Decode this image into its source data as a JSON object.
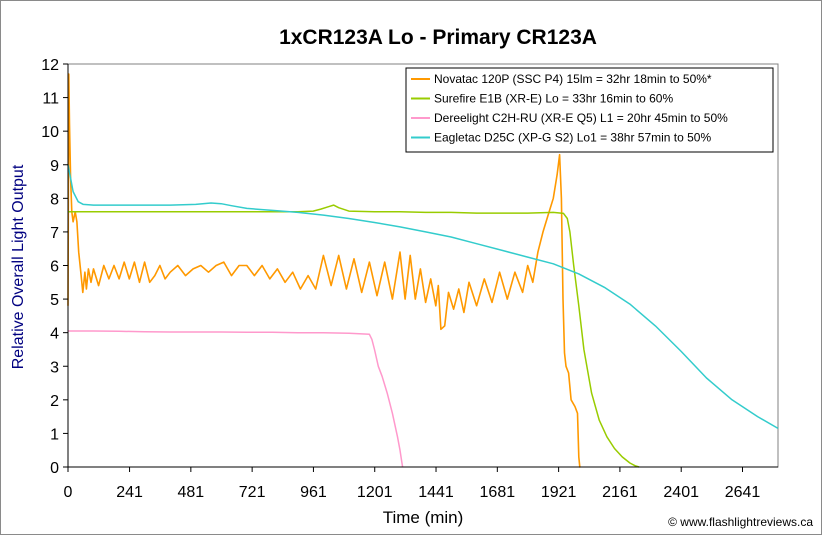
{
  "chart_data": {
    "type": "line",
    "title": "1xCR123A Lo - Primary CR123A",
    "xlabel": "Time (min)",
    "ylabel": "Relative Overall Light Output",
    "credit": "© www.flashlightreviews.ca",
    "xlim": [
      0,
      2780
    ],
    "ylim": [
      0,
      12
    ],
    "x_ticks": [
      "0",
      "241",
      "481",
      "721",
      "961",
      "1201",
      "1441",
      "1681",
      "1921",
      "2161",
      "2401",
      "2641"
    ],
    "y_ticks": [
      "0",
      "1",
      "2",
      "3",
      "4",
      "5",
      "6",
      "7",
      "8",
      "9",
      "10",
      "11",
      "12"
    ],
    "grid": false,
    "legend_position": "top-right",
    "series": [
      {
        "name": "Novatac 120P (SSC P4) 15lm = 32hr 18min to 50%*",
        "color": "#ff9900",
        "x": [
          0,
          3,
          6,
          10,
          15,
          20,
          28,
          35,
          42,
          50,
          58,
          66,
          72,
          80,
          90,
          100,
          120,
          140,
          160,
          180,
          200,
          220,
          240,
          260,
          280,
          300,
          320,
          340,
          360,
          380,
          400,
          430,
          460,
          490,
          520,
          550,
          580,
          610,
          640,
          670,
          700,
          730,
          760,
          790,
          820,
          850,
          880,
          910,
          940,
          970,
          1000,
          1030,
          1060,
          1090,
          1120,
          1150,
          1180,
          1210,
          1240,
          1270,
          1300,
          1320,
          1340,
          1360,
          1380,
          1400,
          1420,
          1440,
          1450,
          1460,
          1475,
          1490,
          1510,
          1530,
          1550,
          1570,
          1600,
          1630,
          1660,
          1690,
          1720,
          1750,
          1780,
          1800,
          1820,
          1840,
          1860,
          1880,
          1900,
          1915,
          1925,
          1932,
          1938,
          1944,
          1950,
          1960,
          1970,
          1985,
          1995,
          2000,
          2004,
          2006
        ],
        "y": [
          4.8,
          11.7,
          10.2,
          8.6,
          7.6,
          7.3,
          7.6,
          7.3,
          6.4,
          5.8,
          5.2,
          5.8,
          5.3,
          5.9,
          5.5,
          5.9,
          5.4,
          6.0,
          5.6,
          6.0,
          5.6,
          6.1,
          5.6,
          6.1,
          5.5,
          6.1,
          5.5,
          5.7,
          6.0,
          5.6,
          5.8,
          6.0,
          5.7,
          5.9,
          6.0,
          5.8,
          6.0,
          6.1,
          5.7,
          6.0,
          6.0,
          5.7,
          6.0,
          5.6,
          5.9,
          5.5,
          5.8,
          5.3,
          5.7,
          5.3,
          6.3,
          5.4,
          6.3,
          5.3,
          6.2,
          5.2,
          6.1,
          5.1,
          6.1,
          5.0,
          6.4,
          5.0,
          6.3,
          5.0,
          5.9,
          4.9,
          5.6,
          4.8,
          5.4,
          4.1,
          4.2,
          5.2,
          4.7,
          5.3,
          4.6,
          5.5,
          4.8,
          5.6,
          4.9,
          5.8,
          5.0,
          5.8,
          5.2,
          6.0,
          5.5,
          6.4,
          7.0,
          7.5,
          8.0,
          8.7,
          9.3,
          8.0,
          5.0,
          3.4,
          3.0,
          2.8,
          2.0,
          1.8,
          1.6,
          0.3,
          0.0,
          0.0
        ],
        "points": []
      },
      {
        "name": "Surefire E1B (XR-E) Lo = 33hr 16min to 60%",
        "color": "#99cc00",
        "x": [
          0,
          50,
          100,
          200,
          300,
          400,
          500,
          600,
          700,
          800,
          900,
          960,
          990,
          1020,
          1040,
          1060,
          1100,
          1200,
          1300,
          1400,
          1500,
          1600,
          1700,
          1800,
          1900,
          1940,
          1955,
          1965,
          1980,
          2000,
          2020,
          2050,
          2080,
          2110,
          2140,
          2170,
          2200,
          2220,
          2236
        ],
        "y": [
          7.6,
          7.6,
          7.6,
          7.6,
          7.6,
          7.6,
          7.6,
          7.6,
          7.6,
          7.6,
          7.6,
          7.62,
          7.68,
          7.75,
          7.8,
          7.72,
          7.62,
          7.6,
          7.6,
          7.58,
          7.58,
          7.56,
          7.56,
          7.56,
          7.58,
          7.55,
          7.4,
          7.0,
          6.0,
          4.8,
          3.5,
          2.2,
          1.4,
          0.9,
          0.55,
          0.3,
          0.12,
          0.04,
          0.0
        ]
      },
      {
        "name": "Dereelight C2H-RU (XR-E Q5) L1 = 20hr 45min to 50%",
        "color": "#ff99cc",
        "x": [
          0,
          100,
          200,
          300,
          400,
          500,
          600,
          700,
          800,
          900,
          1000,
          1100,
          1180,
          1190,
          1200,
          1215,
          1230,
          1250,
          1270,
          1290,
          1300,
          1307,
          1310
        ],
        "y": [
          4.05,
          4.05,
          4.04,
          4.03,
          4.02,
          4.02,
          4.02,
          4.01,
          4.01,
          4.0,
          4.0,
          3.98,
          3.95,
          3.8,
          3.5,
          3.0,
          2.7,
          2.2,
          1.6,
          0.9,
          0.5,
          0.15,
          0.0
        ]
      },
      {
        "name": "Eagletac D25C (XP-G S2) Lo1 = 38hr 57min to 50%",
        "color": "#33cccc",
        "x": [
          0,
          10,
          20,
          40,
          60,
          100,
          200,
          300,
          400,
          500,
          560,
          600,
          640,
          700,
          800,
          900,
          1000,
          1100,
          1200,
          1300,
          1400,
          1500,
          1600,
          1700,
          1800,
          1900,
          2000,
          2100,
          2200,
          2300,
          2400,
          2500,
          2600,
          2700,
          2780
        ],
        "y": [
          9.0,
          8.6,
          8.2,
          7.9,
          7.82,
          7.8,
          7.8,
          7.8,
          7.8,
          7.82,
          7.86,
          7.84,
          7.78,
          7.7,
          7.64,
          7.58,
          7.5,
          7.4,
          7.28,
          7.15,
          7.0,
          6.85,
          6.65,
          6.45,
          6.25,
          6.05,
          5.75,
          5.35,
          4.85,
          4.2,
          3.45,
          2.65,
          2.0,
          1.5,
          1.15
        ]
      }
    ]
  }
}
